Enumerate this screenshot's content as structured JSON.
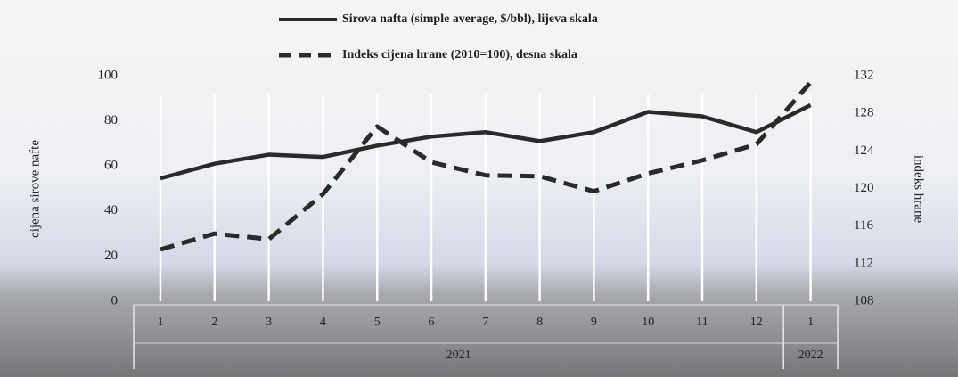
{
  "chart_data": {
    "type": "line",
    "category_groups": [
      {
        "label": "2021",
        "categories": [
          "1",
          "2",
          "3",
          "4",
          "5",
          "6",
          "7",
          "8",
          "9",
          "10",
          "11",
          "12"
        ]
      },
      {
        "label": "2022",
        "categories": [
          "1"
        ]
      }
    ],
    "series": [
      {
        "name": "Sirova nafta (simple average, $/bbl), lijeva skala",
        "color": "#2a2a2a",
        "dash": false,
        "axis": "y",
        "values": [
          54.5,
          61,
          65,
          64,
          69,
          73,
          75,
          71,
          75,
          84,
          82,
          75,
          87
        ]
      },
      {
        "name": "Indeks cijena hrane (2010=100), desna skala",
        "color": "#2a2a2a",
        "dash": true,
        "axis": "y2",
        "values": [
          113.5,
          115.2,
          114.6,
          119.4,
          126.6,
          122.8,
          121.4,
          121.3,
          119.7,
          121.6,
          123,
          124.7,
          131.3
        ]
      }
    ],
    "ylabel": "cijena sirove nafte",
    "y2label": "indeks hrane",
    "ylim": [
      0,
      100
    ],
    "yticks": [
      0,
      20,
      40,
      60,
      80,
      100
    ],
    "y2lim": [
      108,
      132
    ],
    "y2ticks": [
      108,
      112,
      116,
      120,
      124,
      128,
      132
    ]
  }
}
